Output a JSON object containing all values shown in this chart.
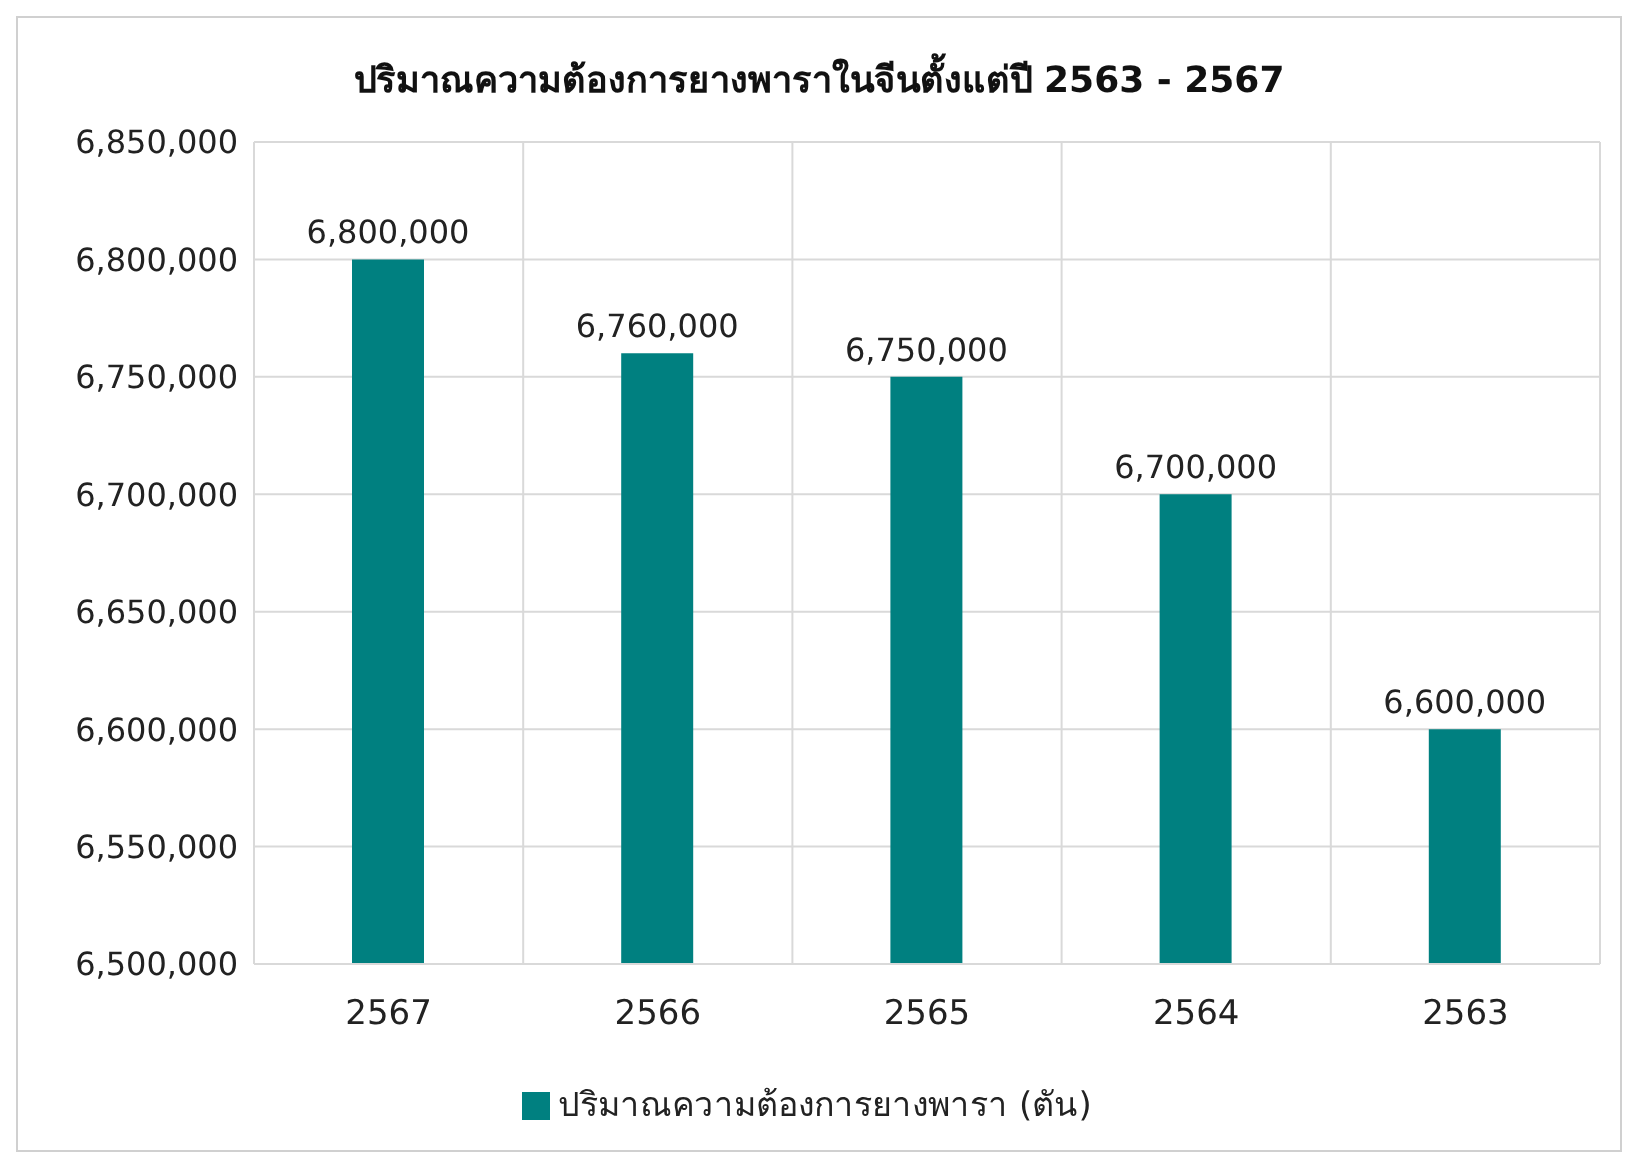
{
  "chart_data": {
    "type": "bar",
    "title": "ปริมาณความต้องการยางพาราในจีนตั้งแต่ปี 2563 - 2567",
    "categories": [
      "2567",
      "2566",
      "2565",
      "2564",
      "2563"
    ],
    "series": [
      {
        "name": "ปริมาณความต้องการยางพารา (ตัน)",
        "color": "#008080",
        "values": [
          6800000,
          6760000,
          6750000,
          6700000,
          6600000
        ],
        "value_labels": [
          "6,800,000",
          "6,760,000",
          "6,750,000",
          "6,700,000",
          "6,600,000"
        ]
      }
    ],
    "ylim": [
      6500000,
      6850000
    ],
    "yticks": [
      {
        "value": 6500000,
        "label": "6,500,000"
      },
      {
        "value": 6550000,
        "label": "6,550,000"
      },
      {
        "value": 6600000,
        "label": "6,600,000"
      },
      {
        "value": 6650000,
        "label": "6,650,000"
      },
      {
        "value": 6700000,
        "label": "6,700,000"
      },
      {
        "value": 6750000,
        "label": "6,750,000"
      },
      {
        "value": 6800000,
        "label": "6,800,000"
      },
      {
        "value": 6850000,
        "label": "6,850,000"
      }
    ],
    "grid": true,
    "legend": "bottom"
  }
}
